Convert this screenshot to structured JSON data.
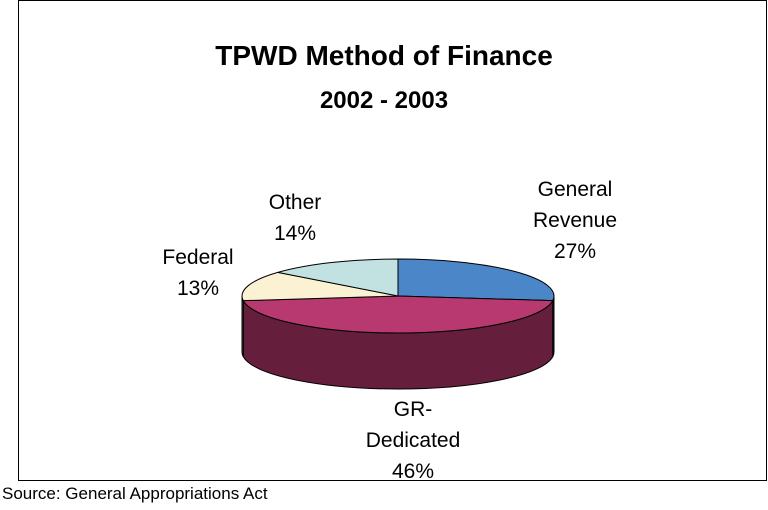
{
  "chart_data": {
    "type": "pie",
    "title": "TPWD Method of Finance",
    "subtitle": "2002 - 2003",
    "categories": [
      "General Revenue",
      "GR-Dedicated",
      "Federal",
      "Other"
    ],
    "values": [
      27,
      46,
      13,
      14
    ],
    "value_labels": [
      "27%",
      "46%",
      "13%",
      "14%"
    ],
    "colors": [
      "#4a86c8",
      "#b8396f",
      "#faf2d2",
      "#c2e2e2"
    ],
    "source": "Source: General Appropriations Act"
  }
}
